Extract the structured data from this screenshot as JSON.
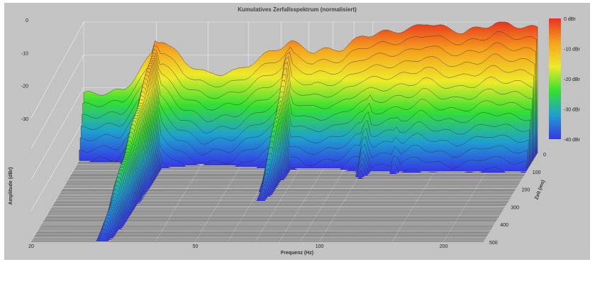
{
  "chart_data": {
    "type": "waterfall",
    "title": "Kumulatives Zerfallsspektrum (normalisiert)",
    "xlabel": "Frequenz (Hz)",
    "ylabel": "Amplitude (dBr)",
    "zlabel": "Zeit (ms)",
    "x_scale": "log",
    "x_range_hz": [
      20,
      250
    ],
    "x_ticks": [
      "20",
      "50",
      "100",
      "200"
    ],
    "y_ticks": [
      "0",
      "-10",
      "-20",
      "-30"
    ],
    "y_range_dbr": [
      -40,
      0
    ],
    "z_ticks": [
      "0",
      "100",
      "200",
      "300",
      "400",
      "500"
    ],
    "z_range_ms": [
      0,
      500
    ],
    "colorbar": {
      "ticks": [
        "0 dBr",
        "-10 dBr",
        "-20 dBr",
        "-30 dBr",
        "-40 dBr"
      ],
      "colors": [
        "#e8331f",
        "#f5a21d",
        "#eeea2a",
        "#35e032",
        "#1f9fcf",
        "#3537e6"
      ]
    },
    "peaks": [
      {
        "freq_hz": 30,
        "level_dbr": -5,
        "decay_ms": 500
      },
      {
        "freq_hz": 63,
        "level_dbr": -6,
        "decay_ms": 260
      },
      {
        "freq_hz": 101,
        "level_dbr": -9,
        "decay_ms": 150
      },
      {
        "freq_hz": 120,
        "level_dbr": -7,
        "decay_ms": 120
      },
      {
        "freq_hz": 136,
        "level_dbr": 0,
        "decay_ms": 70
      },
      {
        "freq_hz": 200,
        "level_dbr": 0,
        "decay_ms": 60
      }
    ],
    "first_slice_dbr": [
      {
        "f": 20,
        "db": -22
      },
      {
        "f": 25,
        "db": -21
      },
      {
        "f": 28,
        "db": -13
      },
      {
        "f": 31,
        "db": -5
      },
      {
        "f": 35,
        "db": -12
      },
      {
        "f": 40,
        "db": -16
      },
      {
        "f": 47,
        "db": -15
      },
      {
        "f": 55,
        "db": -10
      },
      {
        "f": 63,
        "db": -6
      },
      {
        "f": 72,
        "db": -9
      },
      {
        "f": 85,
        "db": -8
      },
      {
        "f": 95,
        "db": -4
      },
      {
        "f": 110,
        "db": -3
      },
      {
        "f": 125,
        "db": -2
      },
      {
        "f": 136,
        "db": 0
      },
      {
        "f": 150,
        "db": -2
      },
      {
        "f": 165,
        "db": -3
      },
      {
        "f": 180,
        "db": -2
      },
      {
        "f": 200,
        "db": 0
      },
      {
        "f": 220,
        "db": -1
      },
      {
        "f": 250,
        "db": -2
      }
    ],
    "grid": true
  }
}
